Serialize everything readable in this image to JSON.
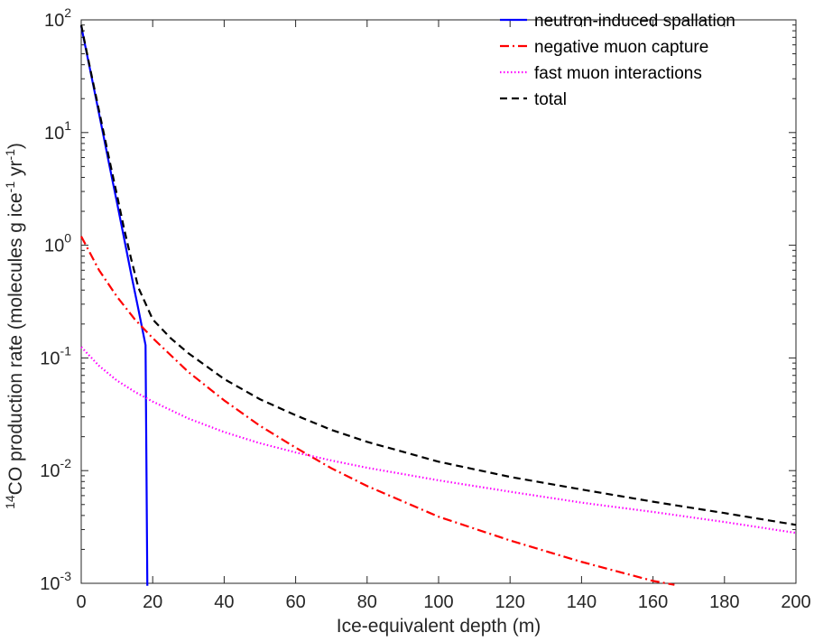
{
  "chart_data": {
    "type": "line",
    "title": "",
    "xlabel": "Ice-equivalent depth (m)",
    "ylabel": {
      "prefix_sup": "14",
      "main": "CO production rate (molecules g ice",
      "sup1": "-1",
      "mid": " yr",
      "sup2": "-1",
      "end": ")"
    },
    "xlim": [
      0,
      200
    ],
    "ylim": [
      0.001,
      100
    ],
    "yscale": "log",
    "grid": false,
    "legend_position": "top-right",
    "x_ticks": [
      {
        "v": 0,
        "label": "0"
      },
      {
        "v": 20,
        "label": "20"
      },
      {
        "v": 40,
        "label": "40"
      },
      {
        "v": 60,
        "label": "60"
      },
      {
        "v": 80,
        "label": "80"
      },
      {
        "v": 100,
        "label": "100"
      },
      {
        "v": 120,
        "label": "120"
      },
      {
        "v": 140,
        "label": "140"
      },
      {
        "v": 160,
        "label": "160"
      },
      {
        "v": 180,
        "label": "180"
      },
      {
        "v": 200,
        "label": "200"
      }
    ],
    "y_ticks": [
      {
        "v": 0.001,
        "base": "10",
        "exp": "-3"
      },
      {
        "v": 0.01,
        "base": "10",
        "exp": "-2"
      },
      {
        "v": 0.1,
        "base": "10",
        "exp": "-1"
      },
      {
        "v": 1,
        "base": "10",
        "exp": "0"
      },
      {
        "v": 10,
        "base": "10",
        "exp": "1"
      },
      {
        "v": 100,
        "base": "10",
        "exp": "2"
      }
    ],
    "series": [
      {
        "name": "neutron-induced spallation",
        "color": "#0000ff",
        "dash": "solid",
        "x": [
          0,
          2,
          4,
          6,
          8,
          10,
          12,
          14,
          16,
          18,
          18.5
        ],
        "y": [
          88,
          43,
          21,
          10.2,
          4.9,
          2.4,
          1.15,
          0.55,
          0.27,
          0.13,
          0.00095
        ]
      },
      {
        "name": "negative muon capture",
        "color": "#ff0000",
        "dash": "dashdot",
        "x": [
          0,
          5,
          10,
          15,
          20,
          30,
          40,
          50,
          60,
          70,
          80,
          100,
          120,
          140,
          160,
          166
        ],
        "y": [
          1.2,
          0.6,
          0.35,
          0.22,
          0.15,
          0.075,
          0.042,
          0.025,
          0.016,
          0.0105,
          0.0073,
          0.0039,
          0.0024,
          0.00155,
          0.00105,
          0.00097
        ]
      },
      {
        "name": "fast muon interactions",
        "color": "#ff00ff",
        "dash": "dotted",
        "x": [
          0,
          5,
          10,
          15,
          20,
          30,
          40,
          50,
          60,
          70,
          80,
          100,
          120,
          140,
          160,
          180,
          200
        ],
        "y": [
          0.125,
          0.085,
          0.063,
          0.05,
          0.041,
          0.029,
          0.022,
          0.0175,
          0.0145,
          0.0123,
          0.0106,
          0.0082,
          0.0065,
          0.0052,
          0.0043,
          0.0035,
          0.0028
        ]
      },
      {
        "name": "total",
        "color": "#000000",
        "dash": "dashed",
        "x": [
          0,
          2,
          4,
          6,
          8,
          10,
          12,
          14,
          16,
          20,
          25,
          30,
          40,
          50,
          60,
          70,
          80,
          100,
          120,
          140,
          160,
          180,
          200
        ],
        "y": [
          90,
          44,
          22,
          11,
          5.5,
          2.8,
          1.4,
          0.75,
          0.42,
          0.22,
          0.15,
          0.11,
          0.065,
          0.043,
          0.031,
          0.023,
          0.018,
          0.012,
          0.0088,
          0.0068,
          0.0053,
          0.0042,
          0.0033
        ]
      }
    ]
  }
}
